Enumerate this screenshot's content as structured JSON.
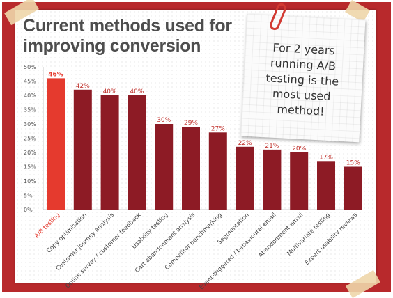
{
  "title_line1": "Current methods used for",
  "title_line2": "improving conversion",
  "note": {
    "line1": "For 2 years",
    "line2": "running A/B",
    "line3": "testing is the",
    "line4": "most used",
    "line5": "method!"
  },
  "colors": {
    "frame": "#b8292c",
    "bar": "#8d1b25",
    "bar_highlight": "#e53a2e",
    "label": "#c0302b",
    "title": "#4d4d4d"
  },
  "chart_data": {
    "type": "bar",
    "title": "Current methods used for improving conversion",
    "xlabel": "",
    "ylabel": "",
    "ylim": [
      0,
      50
    ],
    "yticks": [
      "0%",
      "5%",
      "10%",
      "15%",
      "20%",
      "25%",
      "30%",
      "35%",
      "40%",
      "45%",
      "50%"
    ],
    "grid": false,
    "categories": [
      "A/B testing",
      "Copy optimisation",
      "Customer journey analysis",
      "Online survey / customer feedback",
      "Usability testing",
      "Cart abandonment analysis",
      "Competitor benchmarking",
      "Segmentation",
      "Event-triggered / behavioural email",
      "Abandonment email",
      "Multivariate testing",
      "Expert usability reviews"
    ],
    "values": [
      46,
      42,
      40,
      40,
      30,
      29,
      27,
      22,
      21,
      20,
      17,
      15
    ],
    "value_labels": [
      "46%",
      "42%",
      "40%",
      "40%",
      "30%",
      "29%",
      "27%",
      "22%",
      "21%",
      "20%",
      "17%",
      "15%"
    ],
    "highlight_index": 0
  }
}
